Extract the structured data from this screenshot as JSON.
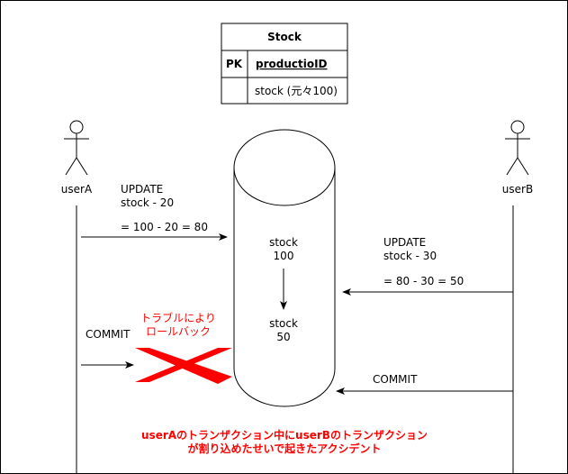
{
  "table": {
    "title": "Stock",
    "pk_label": "PK",
    "pk_field": "productioID",
    "field": "stock (元々100)"
  },
  "actors": {
    "a": "userA",
    "b": "userB"
  },
  "user_a_update": {
    "line1": "UPDATE",
    "line2": "stock - 20",
    "calc": "= 100 - 20 = 80"
  },
  "user_b_update": {
    "line1": "UPDATE",
    "line2": "stock - 30",
    "calc": "= 80 - 30 = 50"
  },
  "db": {
    "before_label": "stock",
    "before_value": "100",
    "after_label": "stock",
    "after_value": "50"
  },
  "user_a_commit": "COMMIT",
  "user_b_commit": "COMMIT",
  "rollback_note": {
    "line1": "トラブルにより",
    "line2": "ロールバック"
  },
  "footer_note": {
    "line1": "userAのトランザクション中にuserBのトランザクション",
    "line2": "が割り込めたせいで起きたアクシデント"
  },
  "colors": {
    "accent_red": "#ff0000",
    "line": "#000000"
  }
}
